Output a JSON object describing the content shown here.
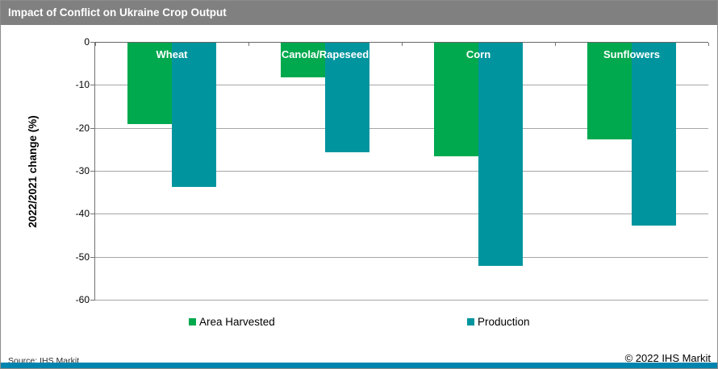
{
  "header": {
    "title": "Impact of Conflict on Ukraine Crop Output"
  },
  "chart_data": {
    "type": "bar",
    "title": "Impact of Conflict on Ukraine Crop Output",
    "categories": [
      "Wheat",
      "Canola/Rapeseed",
      "Corn",
      "Sunflowers"
    ],
    "series": [
      {
        "name": "Area Harvested",
        "color": "#00a94e",
        "values": [
          -19,
          -8,
          -26.5,
          -22.5
        ]
      },
      {
        "name": "Production",
        "color": "#00959e",
        "values": [
          -33.5,
          -25.5,
          -52,
          -42.5
        ]
      }
    ],
    "xlabel": "",
    "ylabel": "2022/2021 change (%)",
    "ylim": [
      -60,
      0
    ],
    "yticks": [
      0,
      -10,
      -20,
      -30,
      -40,
      -50,
      -60
    ],
    "grid": true,
    "legend_position": "bottom",
    "category_label_style": "white-bold-inside-top"
  },
  "footer": {
    "source": "Source: IHS Markit",
    "copyright": "© 2022 IHS Markit"
  },
  "colors": {
    "title_bar_bg": "#808080",
    "title_text": "#ffffff",
    "area_harvested": "#00a94e",
    "production": "#00959e",
    "gridline": "#a6a6a6",
    "axis": "#737373",
    "brand_bar": "#0084ad"
  }
}
